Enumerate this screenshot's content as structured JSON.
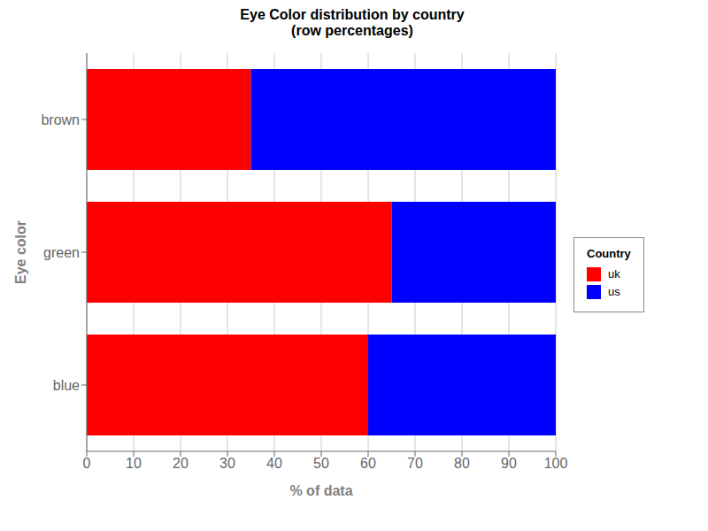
{
  "chart_data": {
    "type": "bar",
    "title": "Eye Color distribution by country",
    "subtitle": "(row percentages)",
    "xlabel": "% of data",
    "ylabel": "Eye color",
    "categories": [
      "blue",
      "green",
      "brown"
    ],
    "series": [
      {
        "name": "uk",
        "color": "#FF0000",
        "values": [
          60,
          65,
          35
        ]
      },
      {
        "name": "us",
        "color": "#0000FF",
        "values": [
          40,
          35,
          65
        ]
      }
    ],
    "xlim": [
      0,
      100
    ],
    "xticks": [
      0,
      10,
      20,
      30,
      40,
      50,
      60,
      70,
      80,
      90,
      100
    ],
    "orientation": "horizontal",
    "stacked": true,
    "grid": true,
    "legend": "right",
    "legend_title": "Country"
  }
}
